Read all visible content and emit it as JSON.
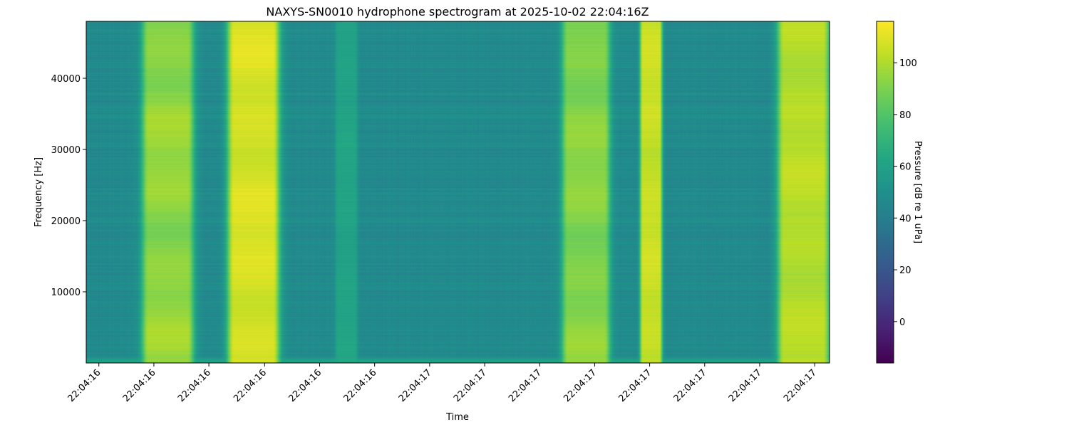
{
  "chart_data": {
    "type": "heatmap",
    "title": "NAXYS-SN0010 hydrophone spectrogram at 2025-10-02 22:04:16Z",
    "xlabel": "Time",
    "ylabel": "Frequency [Hz]",
    "colorbar_label": "Pressure [dB re 1 uPa]",
    "colormap": "viridis",
    "ylim": [
      0,
      48000
    ],
    "clim": [
      -16,
      116
    ],
    "x_tick_labels": [
      "22:04:16",
      "22:04:16",
      "22:04:16",
      "22:04:16",
      "22:04:16",
      "22:04:16",
      "22:04:17",
      "22:04:17",
      "22:04:17",
      "22:04:17",
      "22:04:17",
      "22:04:17",
      "22:04:17",
      "22:04:17"
    ],
    "y_ticks": [
      10000,
      20000,
      30000,
      40000
    ],
    "colorbar_ticks": [
      0,
      20,
      40,
      60,
      80,
      100
    ],
    "time_fraction_range": [
      0.0,
      1.0
    ],
    "x_tick_fractions": [
      0.017,
      0.091,
      0.165,
      0.24,
      0.314,
      0.388,
      0.462,
      0.536,
      0.61,
      0.684,
      0.758,
      0.832,
      0.906,
      0.98
    ],
    "background_level_db": 47,
    "floor_band": {
      "max_hz": 1200,
      "level_db": 62
    },
    "events": [
      {
        "name": "pulse-1",
        "start": 0.075,
        "end": 0.145,
        "peak_db": 100,
        "edge_db": 75
      },
      {
        "name": "pulse-2",
        "start": 0.19,
        "end": 0.26,
        "peak_db": 112,
        "edge_db": 95
      },
      {
        "name": "faint-1",
        "start": 0.335,
        "end": 0.365,
        "peak_db": 63,
        "edge_db": 55
      },
      {
        "name": "pulse-3",
        "start": 0.64,
        "end": 0.705,
        "peak_db": 97,
        "edge_db": 75
      },
      {
        "name": "pulse-4",
        "start": 0.745,
        "end": 0.775,
        "peak_db": 108,
        "edge_db": 95
      },
      {
        "name": "pulse-5",
        "start": 0.93,
        "end": 1.0,
        "peak_db": 105,
        "edge_db": 90
      }
    ]
  }
}
